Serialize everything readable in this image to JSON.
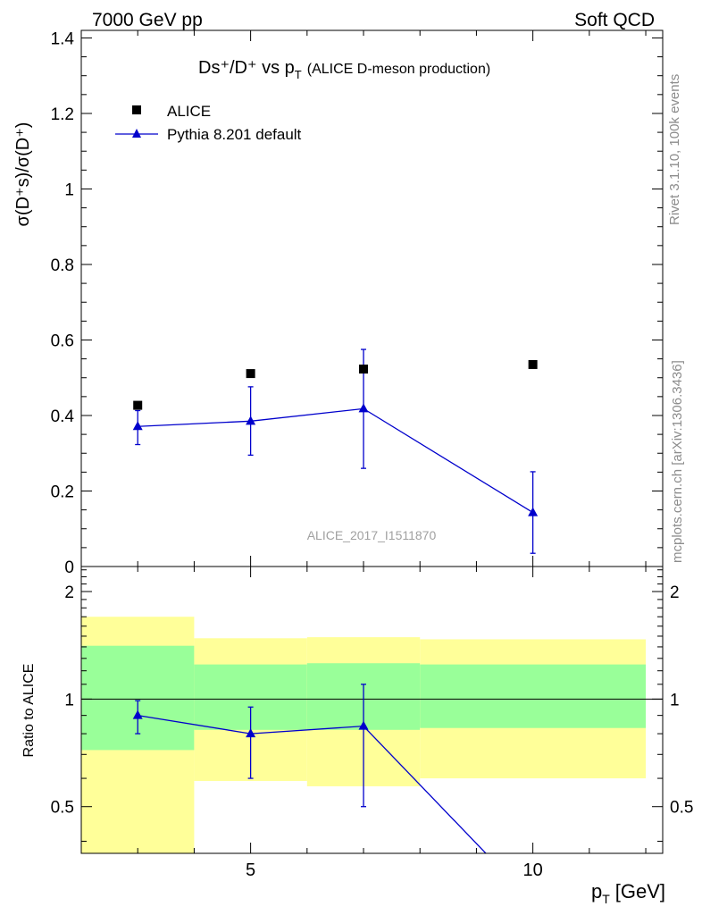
{
  "header": {
    "left": "7000 GeV pp",
    "right": "Soft QCD"
  },
  "title": {
    "main": "Ds⁺/D⁺ vs p",
    "sub": "T",
    "suffix": "(ALICE D-meson production)"
  },
  "legend": {
    "data_label": "ALICE",
    "mc_label": "Pythia 8.201 default"
  },
  "side": {
    "rivet": "Rivet 3.1.10,  100k events",
    "mcplots": "mcplots.cern.ch [arXiv:1306.3436]"
  },
  "watermark": "ALICE_2017_I1511870",
  "axes": {
    "ylabel_main": "σ(D⁺s)/σ(D⁺)",
    "ylabel_ratio": "Ratio to ALICE",
    "xlabel": "p",
    "xlabel_sub": "T",
    "xlabel_unit": "[GeV]"
  },
  "colors": {
    "mc": "#0000cc",
    "data": "#000000",
    "band_outer": "#ffff99",
    "band_inner": "#99ff99",
    "side_text": "#8c8c8c"
  },
  "chart_data": [
    {
      "type": "scatter",
      "panel": "main",
      "xlim": [
        2,
        12.3
      ],
      "ylim": [
        0,
        1.42
      ],
      "yticks": [
        "0",
        "0.2",
        "0.4",
        "0.6",
        "0.8",
        "1",
        "1.2",
        "1.4"
      ],
      "series": [
        {
          "name": "ALICE",
          "x": [
            3,
            5,
            7,
            10
          ],
          "y": [
            0.427,
            0.511,
            0.523,
            0.535
          ],
          "marker": "square"
        },
        {
          "name": "Pythia 8.201 default",
          "x": [
            3,
            5,
            7,
            10
          ],
          "y": [
            0.371,
            0.385,
            0.418,
            0.143
          ],
          "yerr_low": [
            0.048,
            0.09,
            0.158,
            0.108
          ],
          "yerr_high": [
            0.042,
            0.091,
            0.157,
            0.108
          ],
          "marker": "triangle"
        }
      ]
    },
    {
      "type": "line",
      "panel": "ratio",
      "xlim": [
        2,
        12.3
      ],
      "ylim": [
        0.37,
        2.35
      ],
      "yscale": "log",
      "xticks": [
        "5",
        "10"
      ],
      "yticks": [
        "0.5",
        "1",
        "2"
      ],
      "bands": [
        {
          "xlow": 2.0,
          "xhigh": 4.0,
          "inner": [
            0.72,
            1.41
          ],
          "outer": [
            0.28,
            1.7
          ]
        },
        {
          "xlow": 4.0,
          "xhigh": 6.0,
          "inner": [
            0.82,
            1.25
          ],
          "outer": [
            0.59,
            1.48
          ]
        },
        {
          "xlow": 6.0,
          "xhigh": 8.0,
          "inner": [
            0.82,
            1.26
          ],
          "outer": [
            0.57,
            1.49
          ]
        },
        {
          "xlow": 8.0,
          "xhigh": 12.0,
          "inner": [
            0.83,
            1.25
          ],
          "outer": [
            0.6,
            1.47
          ]
        }
      ],
      "series": [
        {
          "name": "Pythia 8.201 default",
          "x": [
            3,
            5,
            7,
            10
          ],
          "y": [
            0.9,
            0.8,
            0.84,
            0.27
          ],
          "yerr_low": [
            0.1,
            0.2,
            0.34,
            0.2
          ],
          "yerr_high": [
            0.09,
            0.15,
            0.26,
            0.2
          ]
        }
      ]
    }
  ]
}
